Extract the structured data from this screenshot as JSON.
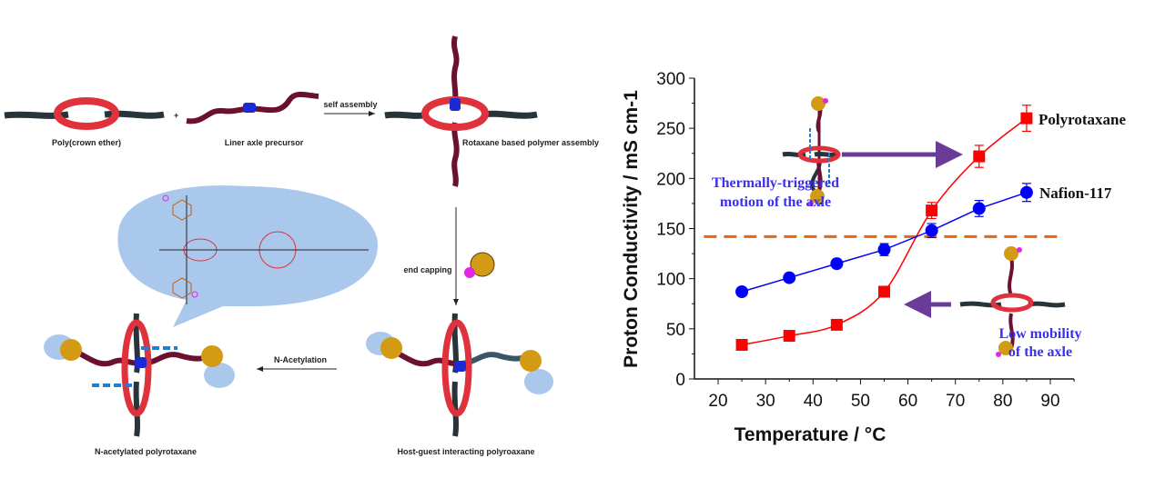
{
  "scheme": {
    "labels": {
      "poly_crown_ether": "Poly(crown ether)",
      "plus": "+",
      "liner_axle": "Liner axle precursor",
      "self_assembly": "self assembly",
      "rotaxane_assembly": "Rotaxane based polymer assembly",
      "end_capping": "end capping",
      "n_acetylation": "N-Acetylation",
      "n_acetylated": "N-acetylated polyrotaxane",
      "host_guest": "Host-guest interacting polyroaxane"
    },
    "colors": {
      "ring": "#e0323c",
      "axle": "#6b1030",
      "backbone": "#27343a",
      "bubble": "#a9c8ec",
      "cap": "#d39a14",
      "charge": "#1a2bd6"
    }
  },
  "chart_data": {
    "type": "line",
    "xlabel": "Temperature / °C",
    "ylabel": "Proton Conductivity / mS cm-1",
    "xlim": [
      15,
      95
    ],
    "ylim": [
      0,
      300
    ],
    "xticks": [
      20,
      30,
      40,
      50,
      60,
      70,
      80,
      90
    ],
    "yticks": [
      0,
      50,
      100,
      150,
      200,
      250,
      300
    ],
    "grid": false,
    "x": [
      25,
      35,
      45,
      55,
      65,
      75,
      85
    ],
    "series": [
      {
        "name": "Polyrotaxane",
        "marker": "square",
        "color": "#ff0000",
        "values": [
          34,
          43,
          54,
          87,
          168,
          222,
          260
        ],
        "errors": [
          2,
          2,
          2,
          2,
          8,
          11,
          13
        ],
        "smoothed": true
      },
      {
        "name": "Nafion-117",
        "marker": "circle",
        "color": "#0000ff",
        "values": [
          87,
          101,
          115,
          129,
          148,
          170,
          186
        ],
        "errors": [
          2,
          3,
          4,
          6,
          7,
          8,
          9
        ],
        "smoothed": false
      }
    ],
    "reference_line": {
      "y": 142,
      "style": "dashed",
      "color": "#e8650f"
    },
    "annotations": {
      "top_left": [
        "Thermally-triggered",
        "motion of the axle"
      ],
      "bottom_right": [
        "Low mobility",
        "of the axle"
      ]
    }
  }
}
